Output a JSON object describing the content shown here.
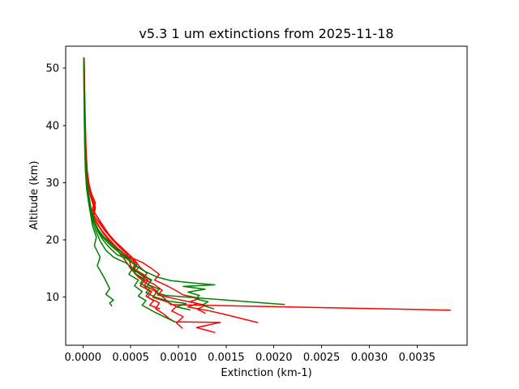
{
  "figure": {
    "background": "#ffffff"
  },
  "chart_data": {
    "type": "line",
    "title": "v5.3 1 um extinctions from 2025-11-18",
    "xlabel": "Extinction (km-1)",
    "ylabel": "Altitude (km)",
    "xlim": [
      -0.000181,
      0.004024
    ],
    "ylim": [
      1.61,
      53.85
    ],
    "xticks": [
      0.0,
      0.0005,
      0.001,
      0.0015,
      0.002,
      0.0025,
      0.003,
      0.0035
    ],
    "xtick_labels": [
      "0.0000",
      "0.0005",
      "0.0010",
      "0.0015",
      "0.0020",
      "0.0025",
      "0.0030",
      "0.0035"
    ],
    "yticks": [
      10,
      20,
      30,
      40,
      50
    ],
    "ytick_labels": [
      "10",
      "20",
      "30",
      "40",
      "50"
    ],
    "grid": false,
    "legend": "none",
    "axis_color": "#000000",
    "series_colors": {
      "red": "#ff0000",
      "green": "#008000"
    },
    "series": [
      {
        "name": "red-profile-1",
        "color": "#ff0000",
        "points": [
          [
            1.2e-05,
            51.7
          ],
          [
            1.5e-05,
            48
          ],
          [
            1.8e-05,
            44
          ],
          [
            2e-05,
            40
          ],
          [
            2.8e-05,
            36
          ],
          [
            4e-05,
            32.5
          ],
          [
            6e-05,
            30
          ],
          [
            9e-05,
            28
          ],
          [
            0.00013,
            26.5
          ],
          [
            0.00011,
            25
          ],
          [
            0.00016,
            23.8
          ],
          [
            0.00021,
            22.5
          ],
          [
            0.00027,
            21
          ],
          [
            0.00034,
            19.7
          ],
          [
            0.00043,
            18.3
          ],
          [
            0.00051,
            17
          ],
          [
            0.00057,
            15.9
          ],
          [
            0.00054,
            14.9
          ],
          [
            0.00064,
            13.9
          ],
          [
            0.00071,
            12.9
          ],
          [
            0.00067,
            11.9
          ],
          [
            0.00077,
            10.9
          ],
          [
            0.00084,
            10.0
          ],
          [
            0.00092,
            8.7
          ],
          [
            0.00385,
            7.74
          ]
        ]
      },
      {
        "name": "red-profile-2",
        "color": "#ff0000",
        "points": [
          [
            1e-05,
            51.6
          ],
          [
            1.4e-05,
            47
          ],
          [
            1.8e-05,
            42
          ],
          [
            2.5e-05,
            37
          ],
          [
            3.5e-05,
            33
          ],
          [
            5e-05,
            30.5
          ],
          [
            8e-05,
            28.5
          ],
          [
            0.00012,
            26.8
          ],
          [
            0.0001,
            25.4
          ],
          [
            0.00015,
            24
          ],
          [
            0.0002,
            22.6
          ],
          [
            0.00026,
            21.2
          ],
          [
            0.00033,
            19.8
          ],
          [
            0.00042,
            18.4
          ],
          [
            0.0005,
            17.2
          ],
          [
            0.0006,
            15.2
          ],
          [
            0.00067,
            14.2
          ],
          [
            0.00063,
            13.2
          ],
          [
            0.00075,
            12.2
          ],
          [
            0.00083,
            11.2
          ],
          [
            0.00078,
            10.4
          ],
          [
            0.001,
            9.6
          ],
          [
            0.0012,
            8.9
          ],
          [
            0.0011,
            8.3
          ],
          [
            0.00133,
            7.6
          ],
          [
            0.00151,
            6.9
          ],
          [
            0.00183,
            5.57
          ]
        ]
      },
      {
        "name": "red-profile-3",
        "color": "#ff0000",
        "points": [
          [
            1.1e-05,
            51.7
          ],
          [
            1.5e-05,
            46
          ],
          [
            2e-05,
            41
          ],
          [
            3e-05,
            36
          ],
          [
            4e-05,
            32
          ],
          [
            6e-05,
            29.5
          ],
          [
            9e-05,
            27.5
          ],
          [
            0.00013,
            25.8
          ],
          [
            0.00011,
            24.4
          ],
          [
            0.00017,
            23
          ],
          [
            0.00023,
            21.6
          ],
          [
            0.0003,
            20.2
          ],
          [
            0.00038,
            18.8
          ],
          [
            0.00047,
            17.4
          ],
          [
            0.0005,
            15.5
          ],
          [
            0.00055,
            14
          ],
          [
            0.00065,
            13
          ],
          [
            0.0006,
            12
          ],
          [
            0.00072,
            11
          ],
          [
            0.00068,
            10
          ],
          [
            0.0008,
            9
          ],
          [
            0.00076,
            8
          ],
          [
            0.00085,
            7
          ],
          [
            0.0009,
            6.3
          ],
          [
            0.00096,
            5.7
          ],
          [
            0.00144,
            5.6
          ],
          [
            0.00119,
            4.7
          ],
          [
            0.00138,
            3.85
          ]
        ]
      },
      {
        "name": "red-profile-4",
        "color": "#ff0000",
        "points": [
          [
            1.3e-05,
            51.6
          ],
          [
            1.8e-05,
            46
          ],
          [
            2.4e-05,
            41
          ],
          [
            3.2e-05,
            36
          ],
          [
            4.5e-05,
            32
          ],
          [
            7e-05,
            29
          ],
          [
            0.0001,
            27
          ],
          [
            0.00013,
            25.5
          ],
          [
            0.00011,
            24
          ],
          [
            0.00016,
            22.5
          ],
          [
            0.00022,
            21
          ],
          [
            0.00029,
            19.5
          ],
          [
            0.00037,
            18
          ],
          [
            0.00044,
            16.5
          ],
          [
            0.0005,
            15
          ],
          [
            0.00058,
            13.5
          ],
          [
            0.0007,
            12
          ],
          [
            0.00078,
            11
          ],
          [
            0.00073,
            10
          ],
          [
            0.00088,
            9.2
          ],
          [
            0.00098,
            8.4
          ],
          [
            0.00093,
            7.6
          ],
          [
            0.00105,
            6.6
          ],
          [
            0.00098,
            5.5
          ],
          [
            0.00104,
            4.6
          ]
        ]
      },
      {
        "name": "red-profile-5",
        "color": "#ff0000",
        "points": [
          [
            1.2e-05,
            51.7
          ],
          [
            1.6e-05,
            46
          ],
          [
            2.2e-05,
            41
          ],
          [
            3e-05,
            36
          ],
          [
            4e-05,
            32
          ],
          [
            6e-05,
            29.2
          ],
          [
            9e-05,
            27.2
          ],
          [
            0.00012,
            25.6
          ],
          [
            0.0001,
            24.2
          ],
          [
            0.00015,
            22.8
          ],
          [
            0.00021,
            21.4
          ],
          [
            0.00028,
            20
          ],
          [
            0.00036,
            18.6
          ],
          [
            0.00045,
            17.3
          ],
          [
            0.00055,
            16.6
          ],
          [
            0.00063,
            16
          ],
          [
            0.00072,
            15
          ],
          [
            0.0008,
            14
          ],
          [
            0.00075,
            13
          ],
          [
            0.00088,
            12
          ],
          [
            0.00097,
            11.2
          ],
          [
            0.00105,
            10.4
          ],
          [
            0.00122,
            9.8
          ],
          [
            0.00112,
            9.2
          ],
          [
            0.00128,
            8.6
          ],
          [
            0.0012,
            7.9
          ],
          [
            0.00128,
            7.2
          ]
        ]
      },
      {
        "name": "red-profile-6",
        "color": "#ff0000",
        "points": [
          [
            1e-05,
            51.6
          ],
          [
            1.5e-05,
            46
          ],
          [
            2e-05,
            41
          ],
          [
            2.8e-05,
            36
          ],
          [
            3.8e-05,
            32
          ],
          [
            5.5e-05,
            29.5
          ],
          [
            8e-05,
            27.6
          ],
          [
            0.00011,
            26
          ],
          [
            9e-05,
            24.6
          ],
          [
            0.00014,
            23.2
          ],
          [
            0.00019,
            21.8
          ],
          [
            0.00025,
            20.4
          ],
          [
            0.00032,
            19
          ],
          [
            0.0004,
            18
          ],
          [
            0.00048,
            17
          ],
          [
            0.00055,
            16
          ],
          [
            0.00052,
            15
          ],
          [
            0.0006,
            14
          ],
          [
            0.00068,
            13
          ],
          [
            0.00064,
            12
          ],
          [
            0.0007,
            11
          ],
          [
            0.00066,
            10.2
          ],
          [
            0.00074,
            9.4
          ],
          [
            0.0007,
            8.6
          ],
          [
            0.0008,
            8.0
          ]
        ]
      },
      {
        "name": "green-profile-1",
        "color": "#008000",
        "points": [
          [
            1e-05,
            51.8
          ],
          [
            1.2e-05,
            47
          ],
          [
            1.5e-05,
            42
          ],
          [
            2e-05,
            37
          ],
          [
            2.8e-05,
            33
          ],
          [
            4e-05,
            30
          ],
          [
            6e-05,
            27.5
          ],
          [
            8e-05,
            25.5
          ],
          [
            0.00011,
            23.5
          ],
          [
            0.00015,
            22
          ],
          [
            0.0002,
            20.6
          ],
          [
            0.00028,
            19.2
          ],
          [
            0.00038,
            17.8
          ],
          [
            0.00048,
            16.6
          ],
          [
            0.00056,
            15.6
          ],
          [
            0.00052,
            14.8
          ],
          [
            0.00062,
            13.9
          ],
          [
            0.00072,
            13
          ],
          [
            0.00068,
            12.2
          ],
          [
            0.0008,
            11.4
          ],
          [
            0.00076,
            10.8
          ],
          [
            0.00087,
            10.3
          ],
          [
            0.00211,
            8.73
          ]
        ]
      },
      {
        "name": "green-profile-2",
        "color": "#008000",
        "points": [
          [
            1e-05,
            51.8
          ],
          [
            1.3e-05,
            46
          ],
          [
            1.7e-05,
            41
          ],
          [
            2.2e-05,
            36
          ],
          [
            3e-05,
            32
          ],
          [
            5e-05,
            29
          ],
          [
            7e-05,
            27
          ],
          [
            9e-05,
            25
          ],
          [
            0.00012,
            23.2
          ],
          [
            0.00016,
            21.8
          ],
          [
            0.00022,
            20.5
          ],
          [
            0.0003,
            19.2
          ],
          [
            0.0004,
            17.9
          ],
          [
            0.00048,
            16.7
          ],
          [
            0.00055,
            15.5
          ],
          [
            0.00065,
            14.5
          ],
          [
            0.00078,
            13.5
          ],
          [
            0.00092,
            12.9
          ],
          [
            0.00115,
            12.5
          ],
          [
            0.00138,
            12.15
          ],
          [
            0.00105,
            11.9
          ],
          [
            0.00128,
            11.4
          ],
          [
            0.0011,
            10.9
          ],
          [
            0.00122,
            10.3
          ],
          [
            0.00118,
            9.7
          ],
          [
            0.00131,
            9.2
          ],
          [
            0.00125,
            8.6
          ],
          [
            0.00137,
            7.97
          ]
        ]
      },
      {
        "name": "green-profile-3",
        "color": "#008000",
        "points": [
          [
            8e-06,
            51.8
          ],
          [
            1.1e-05,
            46
          ],
          [
            1.4e-05,
            41
          ],
          [
            1.9e-05,
            36
          ],
          [
            2.6e-05,
            32
          ],
          [
            3.8e-05,
            29
          ],
          [
            5.5e-05,
            27
          ],
          [
            7.5e-05,
            25.2
          ],
          [
            0.0001,
            23.4
          ],
          [
            0.000135,
            21.6
          ],
          [
            0.00018,
            19.8
          ],
          [
            0.00024,
            18.2
          ],
          [
            0.00032,
            17
          ],
          [
            0.00038,
            16.5
          ],
          [
            0.00045,
            16
          ],
          [
            0.00052,
            15
          ],
          [
            0.00048,
            14
          ],
          [
            0.00058,
            13
          ],
          [
            0.00054,
            12
          ],
          [
            0.00062,
            11
          ],
          [
            0.00058,
            10.2
          ],
          [
            0.00066,
            9.4
          ],
          [
            0.00062,
            8.6
          ],
          [
            0.00075,
            7.4
          ],
          [
            0.00096,
            5.7
          ]
        ]
      },
      {
        "name": "green-profile-4",
        "color": "#008000",
        "points": [
          [
            9e-06,
            51.8
          ],
          [
            1.2e-05,
            46
          ],
          [
            1.6e-05,
            41
          ],
          [
            2e-05,
            36
          ],
          [
            2.8e-05,
            32
          ],
          [
            4e-05,
            29
          ],
          [
            6e-05,
            26.5
          ],
          [
            8e-05,
            24.5
          ],
          [
            0.0001,
            22.5
          ],
          [
            0.00014,
            20.5
          ],
          [
            0.00012,
            19
          ],
          [
            0.00018,
            17
          ],
          [
            0.00015,
            15.5
          ],
          [
            0.00022,
            13.5
          ],
          [
            0.00028,
            11.5
          ],
          [
            0.00024,
            10.5
          ],
          [
            0.00032,
            9.5
          ],
          [
            0.00028,
            9.0
          ],
          [
            0.0003,
            8.5
          ]
        ]
      },
      {
        "name": "green-profile-5",
        "color": "#008000",
        "points": [
          [
            1e-05,
            51.8
          ],
          [
            1.3e-05,
            46.5
          ],
          [
            1.7e-05,
            41.5
          ],
          [
            2.3e-05,
            36.5
          ],
          [
            3.2e-05,
            32.5
          ],
          [
            4.6e-05,
            29.5
          ],
          [
            6.5e-05,
            27.3
          ],
          [
            8.5e-05,
            25.3
          ],
          [
            0.000115,
            23.3
          ],
          [
            0.000155,
            21.5
          ],
          [
            0.00021,
            20
          ],
          [
            0.00028,
            18.6
          ],
          [
            0.00036,
            17.4
          ],
          [
            0.00045,
            16.8
          ],
          [
            0.0005,
            16.2
          ],
          [
            0.00058,
            15.2
          ],
          [
            0.00054,
            14.2
          ],
          [
            0.00064,
            13.2
          ],
          [
            0.0006,
            12.4
          ],
          [
            0.0007,
            11.6
          ],
          [
            0.00066,
            10.8
          ],
          [
            0.00076,
            10.0
          ],
          [
            0.0009,
            9.3
          ],
          [
            0.00108,
            8.9
          ],
          [
            0.00098,
            8.3
          ],
          [
            0.00112,
            7.8
          ]
        ]
      }
    ]
  }
}
